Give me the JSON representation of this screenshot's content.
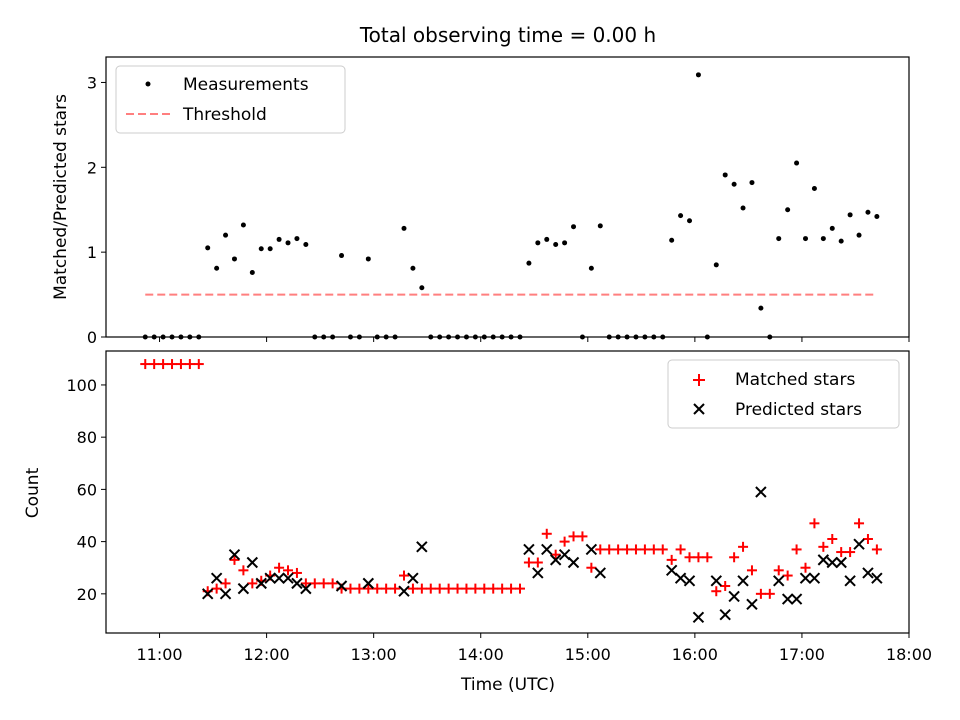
{
  "chart_data": [
    {
      "type": "scatter",
      "title": "Total observing time = 0.00 h",
      "xlabel": "",
      "ylabel": "Matched/Predicted stars",
      "ylim": [
        0,
        3.3
      ],
      "xlim": [
        "10:30",
        "18:00"
      ],
      "yticks": [
        "0",
        "1",
        "2",
        "3"
      ],
      "grid": false,
      "legend": {
        "placement": "top-left",
        "entries": [
          "Measurements",
          "Threshold"
        ]
      },
      "series": [
        {
          "name": "Measurements",
          "marker": "dot",
          "color": "#000000",
          "points": [
            [
              "10:52",
              0
            ],
            [
              "10:57",
              0
            ],
            [
              "11:02",
              0
            ],
            [
              "11:07",
              0
            ],
            [
              "11:12",
              0
            ],
            [
              "11:17",
              0
            ],
            [
              "11:22",
              0
            ],
            [
              "11:27",
              1.05
            ],
            [
              "11:32",
              0.81
            ],
            [
              "11:37",
              1.2
            ],
            [
              "11:42",
              0.92
            ],
            [
              "11:47",
              1.32
            ],
            [
              "11:52",
              0.76
            ],
            [
              "11:57",
              1.04
            ],
            [
              "12:02",
              1.04
            ],
            [
              "12:07",
              1.15
            ],
            [
              "12:12",
              1.11
            ],
            [
              "12:17",
              1.16
            ],
            [
              "12:22",
              1.09
            ],
            [
              "12:27",
              0
            ],
            [
              "12:32",
              0
            ],
            [
              "12:37",
              0
            ],
            [
              "12:42",
              0.96
            ],
            [
              "12:47",
              0
            ],
            [
              "12:52",
              0
            ],
            [
              "12:57",
              0.92
            ],
            [
              "13:02",
              0
            ],
            [
              "13:07",
              0
            ],
            [
              "13:12",
              0
            ],
            [
              "13:17",
              1.28
            ],
            [
              "13:22",
              0.81
            ],
            [
              "13:27",
              0.58
            ],
            [
              "13:32",
              0
            ],
            [
              "13:37",
              0
            ],
            [
              "13:42",
              0
            ],
            [
              "13:47",
              0
            ],
            [
              "13:52",
              0
            ],
            [
              "13:57",
              0
            ],
            [
              "14:02",
              0
            ],
            [
              "14:07",
              0
            ],
            [
              "14:12",
              0
            ],
            [
              "14:17",
              0
            ],
            [
              "14:22",
              0
            ],
            [
              "14:27",
              0.87
            ],
            [
              "14:32",
              1.11
            ],
            [
              "14:37",
              1.15
            ],
            [
              "14:42",
              1.09
            ],
            [
              "14:47",
              1.11
            ],
            [
              "14:52",
              1.3
            ],
            [
              "14:57",
              0
            ],
            [
              "15:02",
              0.81
            ],
            [
              "15:07",
              1.31
            ],
            [
              "15:12",
              0
            ],
            [
              "15:17",
              0
            ],
            [
              "15:22",
              0
            ],
            [
              "15:27",
              0
            ],
            [
              "15:32",
              0
            ],
            [
              "15:37",
              0
            ],
            [
              "15:42",
              0
            ],
            [
              "15:47",
              1.14
            ],
            [
              "15:52",
              1.43
            ],
            [
              "15:57",
              1.37
            ],
            [
              "16:02",
              3.09
            ],
            [
              "16:07",
              0
            ],
            [
              "16:12",
              0.85
            ],
            [
              "16:17",
              1.91
            ],
            [
              "16:22",
              1.8
            ],
            [
              "16:27",
              1.52
            ],
            [
              "16:32",
              1.82
            ],
            [
              "16:37",
              0.34
            ],
            [
              "16:42",
              0
            ],
            [
              "16:47",
              1.16
            ],
            [
              "16:52",
              1.5
            ],
            [
              "16:57",
              2.05
            ],
            [
              "17:02",
              1.16
            ],
            [
              "17:07",
              1.75
            ],
            [
              "17:12",
              1.16
            ],
            [
              "17:17",
              1.28
            ],
            [
              "17:22",
              1.13
            ],
            [
              "17:27",
              1.44
            ],
            [
              "17:32",
              1.2
            ],
            [
              "17:37",
              1.47
            ],
            [
              "17:42",
              1.42
            ]
          ]
        },
        {
          "name": "Threshold",
          "line": "dashed",
          "color": "#ff7f7f",
          "points": [
            [
              "10:52",
              0.5
            ],
            [
              "17:42",
              0.5
            ]
          ]
        }
      ]
    },
    {
      "type": "scatter",
      "title": "",
      "xlabel": "Time (UTC)",
      "ylabel": "Count",
      "ylim": [
        5,
        113
      ],
      "xlim": [
        "10:30",
        "18:00"
      ],
      "xticks": [
        "11:00",
        "12:00",
        "13:00",
        "14:00",
        "15:00",
        "16:00",
        "17:00",
        "18:00"
      ],
      "yticks": [
        "20",
        "40",
        "60",
        "80",
        "100"
      ],
      "grid": false,
      "legend": {
        "placement": "top-right",
        "entries": [
          "Matched stars",
          "Predicted stars"
        ]
      },
      "series": [
        {
          "name": "Matched stars",
          "marker": "plus",
          "color": "#ff0000",
          "points": [
            [
              "10:52",
              108
            ],
            [
              "10:57",
              108
            ],
            [
              "11:02",
              108
            ],
            [
              "11:07",
              108
            ],
            [
              "11:12",
              108
            ],
            [
              "11:17",
              108
            ],
            [
              "11:22",
              108
            ],
            [
              "11:27",
              21
            ],
            [
              "11:32",
              22
            ],
            [
              "11:37",
              24
            ],
            [
              "11:42",
              33
            ],
            [
              "11:47",
              29
            ],
            [
              "11:52",
              24
            ],
            [
              "11:57",
              25
            ],
            [
              "12:02",
              27
            ],
            [
              "12:07",
              30
            ],
            [
              "12:12",
              29
            ],
            [
              "12:17",
              28
            ],
            [
              "12:22",
              24
            ],
            [
              "12:27",
              24
            ],
            [
              "12:32",
              24
            ],
            [
              "12:37",
              24
            ],
            [
              "12:42",
              22
            ],
            [
              "12:47",
              22
            ],
            [
              "12:52",
              22
            ],
            [
              "12:57",
              22
            ],
            [
              "13:02",
              22
            ],
            [
              "13:07",
              22
            ],
            [
              "13:12",
              22
            ],
            [
              "13:17",
              27
            ],
            [
              "13:22",
              22
            ],
            [
              "13:27",
              22
            ],
            [
              "13:32",
              22
            ],
            [
              "13:37",
              22
            ],
            [
              "13:42",
              22
            ],
            [
              "13:47",
              22
            ],
            [
              "13:52",
              22
            ],
            [
              "13:57",
              22
            ],
            [
              "14:02",
              22
            ],
            [
              "14:07",
              22
            ],
            [
              "14:12",
              22
            ],
            [
              "14:17",
              22
            ],
            [
              "14:22",
              22
            ],
            [
              "14:27",
              32
            ],
            [
              "14:32",
              32
            ],
            [
              "14:37",
              43
            ],
            [
              "14:42",
              35
            ],
            [
              "14:47",
              40
            ],
            [
              "14:52",
              42
            ],
            [
              "14:57",
              42
            ],
            [
              "15:02",
              30
            ],
            [
              "15:07",
              37
            ],
            [
              "15:12",
              37
            ],
            [
              "15:17",
              37
            ],
            [
              "15:22",
              37
            ],
            [
              "15:27",
              37
            ],
            [
              "15:32",
              37
            ],
            [
              "15:37",
              37
            ],
            [
              "15:42",
              37
            ],
            [
              "15:47",
              33
            ],
            [
              "15:52",
              37
            ],
            [
              "15:57",
              34
            ],
            [
              "16:02",
              34
            ],
            [
              "16:07",
              34
            ],
            [
              "16:12",
              21
            ],
            [
              "16:17",
              23
            ],
            [
              "16:22",
              34
            ],
            [
              "16:27",
              38
            ],
            [
              "16:32",
              29
            ],
            [
              "16:37",
              20
            ],
            [
              "16:42",
              20
            ],
            [
              "16:47",
              29
            ],
            [
              "16:52",
              27
            ],
            [
              "16:57",
              37
            ],
            [
              "17:02",
              30
            ],
            [
              "17:07",
              47
            ],
            [
              "17:12",
              38
            ],
            [
              "17:17",
              41
            ],
            [
              "17:22",
              36
            ],
            [
              "17:27",
              36
            ],
            [
              "17:32",
              47
            ],
            [
              "17:37",
              41
            ],
            [
              "17:42",
              37
            ]
          ]
        },
        {
          "name": "Predicted stars",
          "marker": "x",
          "color": "#000000",
          "points": [
            [
              "11:27",
              20
            ],
            [
              "11:32",
              26
            ],
            [
              "11:37",
              20
            ],
            [
              "11:42",
              35
            ],
            [
              "11:47",
              22
            ],
            [
              "11:52",
              32
            ],
            [
              "11:57",
              24
            ],
            [
              "12:02",
              26
            ],
            [
              "12:07",
              26
            ],
            [
              "12:12",
              26
            ],
            [
              "12:17",
              24
            ],
            [
              "12:22",
              22
            ],
            [
              "12:42",
              23
            ],
            [
              "12:57",
              24
            ],
            [
              "13:17",
              21
            ],
            [
              "13:22",
              26
            ],
            [
              "13:27",
              38
            ],
            [
              "14:27",
              37
            ],
            [
              "14:32",
              28
            ],
            [
              "14:37",
              37
            ],
            [
              "14:42",
              33
            ],
            [
              "14:47",
              35
            ],
            [
              "14:52",
              32
            ],
            [
              "15:02",
              37
            ],
            [
              "15:07",
              28
            ],
            [
              "15:47",
              29
            ],
            [
              "15:52",
              26
            ],
            [
              "15:57",
              25
            ],
            [
              "16:02",
              11
            ],
            [
              "16:12",
              25
            ],
            [
              "16:17",
              12
            ],
            [
              "16:22",
              19
            ],
            [
              "16:27",
              25
            ],
            [
              "16:32",
              16
            ],
            [
              "16:37",
              59
            ],
            [
              "16:47",
              25
            ],
            [
              "16:52",
              18
            ],
            [
              "16:57",
              18
            ],
            [
              "17:02",
              26
            ],
            [
              "17:07",
              26
            ],
            [
              "17:12",
              33
            ],
            [
              "17:17",
              32
            ],
            [
              "17:22",
              32
            ],
            [
              "17:27",
              25
            ],
            [
              "17:32",
              39
            ],
            [
              "17:37",
              28
            ],
            [
              "17:42",
              26
            ]
          ]
        }
      ]
    }
  ]
}
